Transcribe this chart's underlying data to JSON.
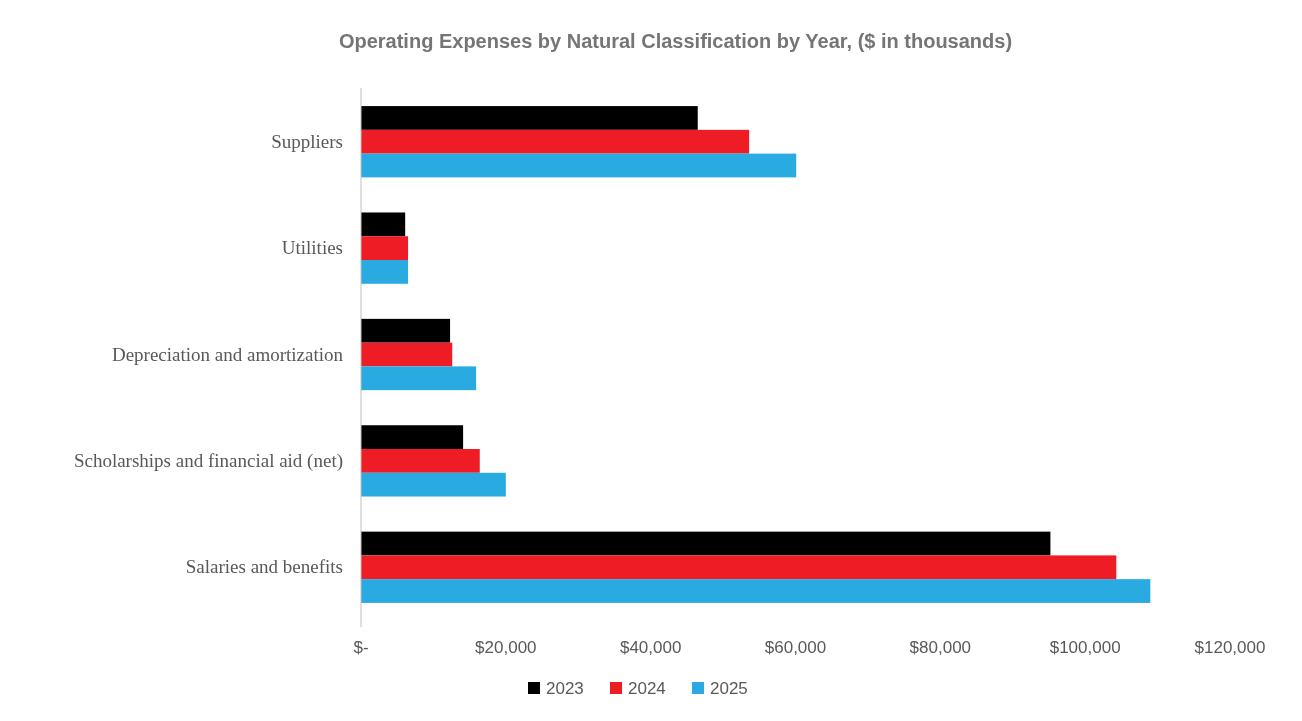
{
  "chart_data": {
    "type": "bar",
    "orientation": "horizontal",
    "title": "Operating Expenses by Natural Classification by Year, ($ in thousands)",
    "categories": [
      "Suppliers",
      "Utilities",
      "Depreciation and amortization",
      "Scholarships and financial aid (net)",
      "Salaries and benefits"
    ],
    "series": [
      {
        "name": "2023",
        "color": "#000000",
        "values": [
          46500,
          6100,
          12300,
          14100,
          95200
        ]
      },
      {
        "name": "2024",
        "color": "#ee1c25",
        "values": [
          53600,
          6500,
          12600,
          16400,
          104300
        ]
      },
      {
        "name": "2025",
        "color": "#29abe2",
        "values": [
          60100,
          6500,
          15900,
          20000,
          109000
        ]
      }
    ],
    "xlim": [
      0,
      120000
    ],
    "xticks": [
      {
        "value": 0,
        "label": "$-"
      },
      {
        "value": 20000,
        "label": "$20,000"
      },
      {
        "value": 40000,
        "label": "$40,000"
      },
      {
        "value": 60000,
        "label": "$60,000"
      },
      {
        "value": 80000,
        "label": "$80,000"
      },
      {
        "value": 100000,
        "label": "$100,000"
      },
      {
        "value": 120000,
        "label": "$120,000"
      }
    ],
    "grid": false,
    "legend": "bottom"
  }
}
